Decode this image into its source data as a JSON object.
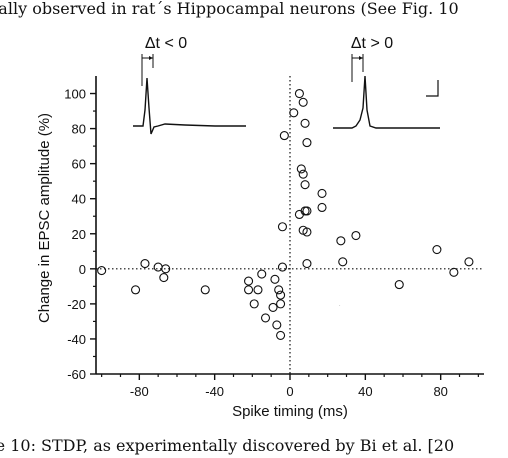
{
  "context_text": {
    "top_line": "nally observed in rat´s Hippocampal neurons (See Fig. 10",
    "caption": "re 10: STDP, as experimentally discovered by Bi et al. [20"
  },
  "chart_data": {
    "type": "scatter",
    "title": "",
    "xlabel": "Spike timing (ms)",
    "ylabel": "Change in EPSC amplitude (%)",
    "xlim": [
      -103,
      103
    ],
    "ylim": [
      -60,
      110
    ],
    "xticks": [
      -80,
      -40,
      0,
      40,
      80
    ],
    "yticks": [
      -60,
      -40,
      -20,
      0,
      20,
      40,
      60,
      80,
      100
    ],
    "xtick_labels": [
      "-80",
      "-40",
      "0",
      "40",
      "80"
    ],
    "ytick_labels": [
      "-60",
      "-40",
      "-20",
      "0",
      "20",
      "40",
      "60",
      "80",
      "100"
    ],
    "reference_lines": [
      {
        "axis": "y",
        "value": 0,
        "style": "dotted"
      },
      {
        "axis": "x",
        "value": 0,
        "style": "dotted"
      }
    ],
    "grid": false,
    "legend": "none",
    "insets": [
      {
        "label": "Δt < 0",
        "position": "top-left",
        "trace": "postsynaptic spike precedes presynaptic input"
      },
      {
        "label": "Δt > 0",
        "position": "top-right",
        "trace": "presynaptic input precedes postsynaptic spike"
      }
    ],
    "points": [
      {
        "x": -100,
        "y": -1
      },
      {
        "x": -82,
        "y": -12
      },
      {
        "x": -77,
        "y": 3
      },
      {
        "x": -70,
        "y": 1
      },
      {
        "x": -67,
        "y": -5
      },
      {
        "x": -66,
        "y": 0
      },
      {
        "x": -45,
        "y": -12
      },
      {
        "x": -22,
        "y": -7
      },
      {
        "x": -22,
        "y": -12
      },
      {
        "x": -19,
        "y": -20
      },
      {
        "x": -17,
        "y": -12
      },
      {
        "x": -15,
        "y": -3
      },
      {
        "x": -13,
        "y": -28
      },
      {
        "x": -9,
        "y": -22
      },
      {
        "x": -8,
        "y": -6
      },
      {
        "x": -7,
        "y": -32
      },
      {
        "x": -6,
        "y": -12
      },
      {
        "x": -5,
        "y": -15
      },
      {
        "x": -5,
        "y": -20
      },
      {
        "x": -5,
        "y": -38
      },
      {
        "x": -4,
        "y": 1
      },
      {
        "x": -4,
        "y": 24
      },
      {
        "x": -3,
        "y": 76
      },
      {
        "x": 2,
        "y": 89
      },
      {
        "x": 5,
        "y": 100
      },
      {
        "x": 5,
        "y": 31
      },
      {
        "x": 6,
        "y": 57
      },
      {
        "x": 7,
        "y": 95
      },
      {
        "x": 7,
        "y": 54
      },
      {
        "x": 7,
        "y": 22
      },
      {
        "x": 8,
        "y": 83
      },
      {
        "x": 8,
        "y": 48
      },
      {
        "x": 8,
        "y": 33
      },
      {
        "x": 9,
        "y": 72
      },
      {
        "x": 9,
        "y": 33
      },
      {
        "x": 9,
        "y": 21
      },
      {
        "x": 9,
        "y": 3
      },
      {
        "x": 17,
        "y": 43
      },
      {
        "x": 17,
        "y": 35
      },
      {
        "x": 27,
        "y": 16
      },
      {
        "x": 28,
        "y": 4
      },
      {
        "x": 35,
        "y": 19
      },
      {
        "x": 58,
        "y": -9
      },
      {
        "x": 78,
        "y": 11
      },
      {
        "x": 87,
        "y": -2
      },
      {
        "x": 95,
        "y": 4
      }
    ]
  }
}
